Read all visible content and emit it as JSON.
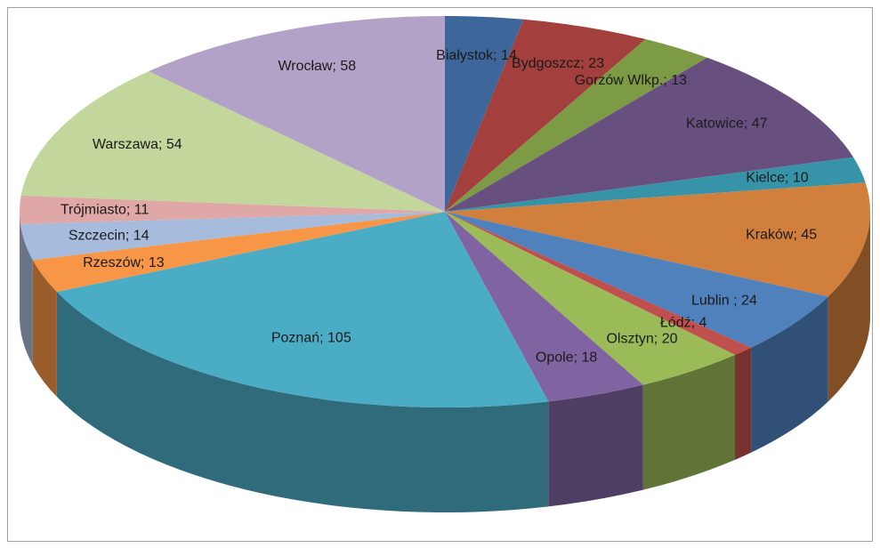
{
  "chart_data": {
    "type": "pie3d",
    "categories": [
      "Białystok",
      "Bydgoszcz",
      "Gorzów Wlkp.",
      "Katowice",
      "Kielce",
      "Kraków",
      "Lublin",
      "Łódź",
      "Olsztyn",
      "Opole",
      "Poznań",
      "Rzeszów",
      "Szczecin",
      "Trójmiasto",
      "Warszawa",
      "Wrocław"
    ],
    "values": [
      14,
      23,
      13,
      47,
      10,
      45,
      24,
      4,
      20,
      18,
      105,
      13,
      14,
      11,
      54,
      58
    ],
    "value_labels": [
      "Białystok; 14",
      "Bydgoszcz; 23",
      "Gorzów Wlkp.; 13",
      "Katowice; 47",
      "Kielce; 10",
      "Kraków; 45",
      "Lublin ; 24",
      "Łódź; 4",
      "Olsztyn; 20",
      "Opole; 18",
      "Poznań; 105",
      "Rzeszów; 13",
      "Szczecin; 14",
      "Trójmiasto; 11",
      "Warszawa; 54",
      "Wrocław; 58"
    ],
    "colors": [
      "#3d679a",
      "#a33f3c",
      "#7d9b44",
      "#67507f",
      "#3693a8",
      "#d17f3c",
      "#4f81bd",
      "#c0504d",
      "#9bbb59",
      "#8064a2",
      "#4bacc6",
      "#f79646",
      "#a7bcdd",
      "#dfa7a6",
      "#c3d69b",
      "#b3a2c7"
    ]
  }
}
